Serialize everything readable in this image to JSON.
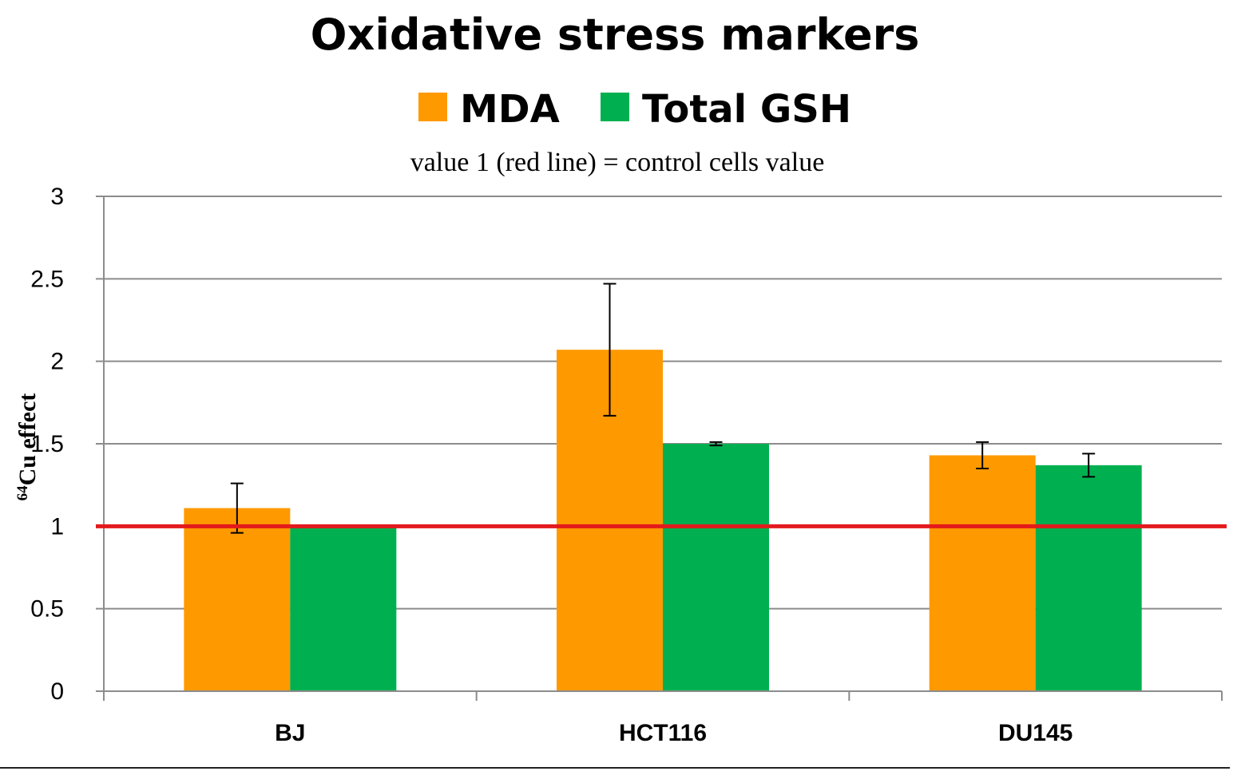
{
  "chart_data": {
    "type": "bar",
    "title": "Oxidative stress markers",
    "subtitle": "value 1 (red line) =  control cells value",
    "ylabel_sup": "64",
    "ylabel_main": "Cu effect",
    "xlabel": "",
    "categories": [
      "BJ",
      "HCT116",
      "DU145"
    ],
    "series": [
      {
        "name": "MDA",
        "color": "#ff9900",
        "values": [
          1.11,
          2.07,
          1.43
        ],
        "errors": [
          0.15,
          0.4,
          0.08
        ]
      },
      {
        "name": "Total GSH",
        "color": "#00b050",
        "values": [
          1.0,
          1.5,
          1.37
        ],
        "errors": [
          0.0,
          0.01,
          0.07
        ]
      }
    ],
    "ylim": [
      0,
      3
    ],
    "yticks": [
      "0",
      "0.5",
      "1",
      "1.5",
      "2",
      "2.5",
      "3"
    ],
    "ytick_values": [
      0,
      0.5,
      1,
      1.5,
      2,
      2.5,
      3
    ],
    "reference_line": {
      "value": 1,
      "color": "#e31a1c"
    },
    "grid": true,
    "legend_position": "top"
  }
}
